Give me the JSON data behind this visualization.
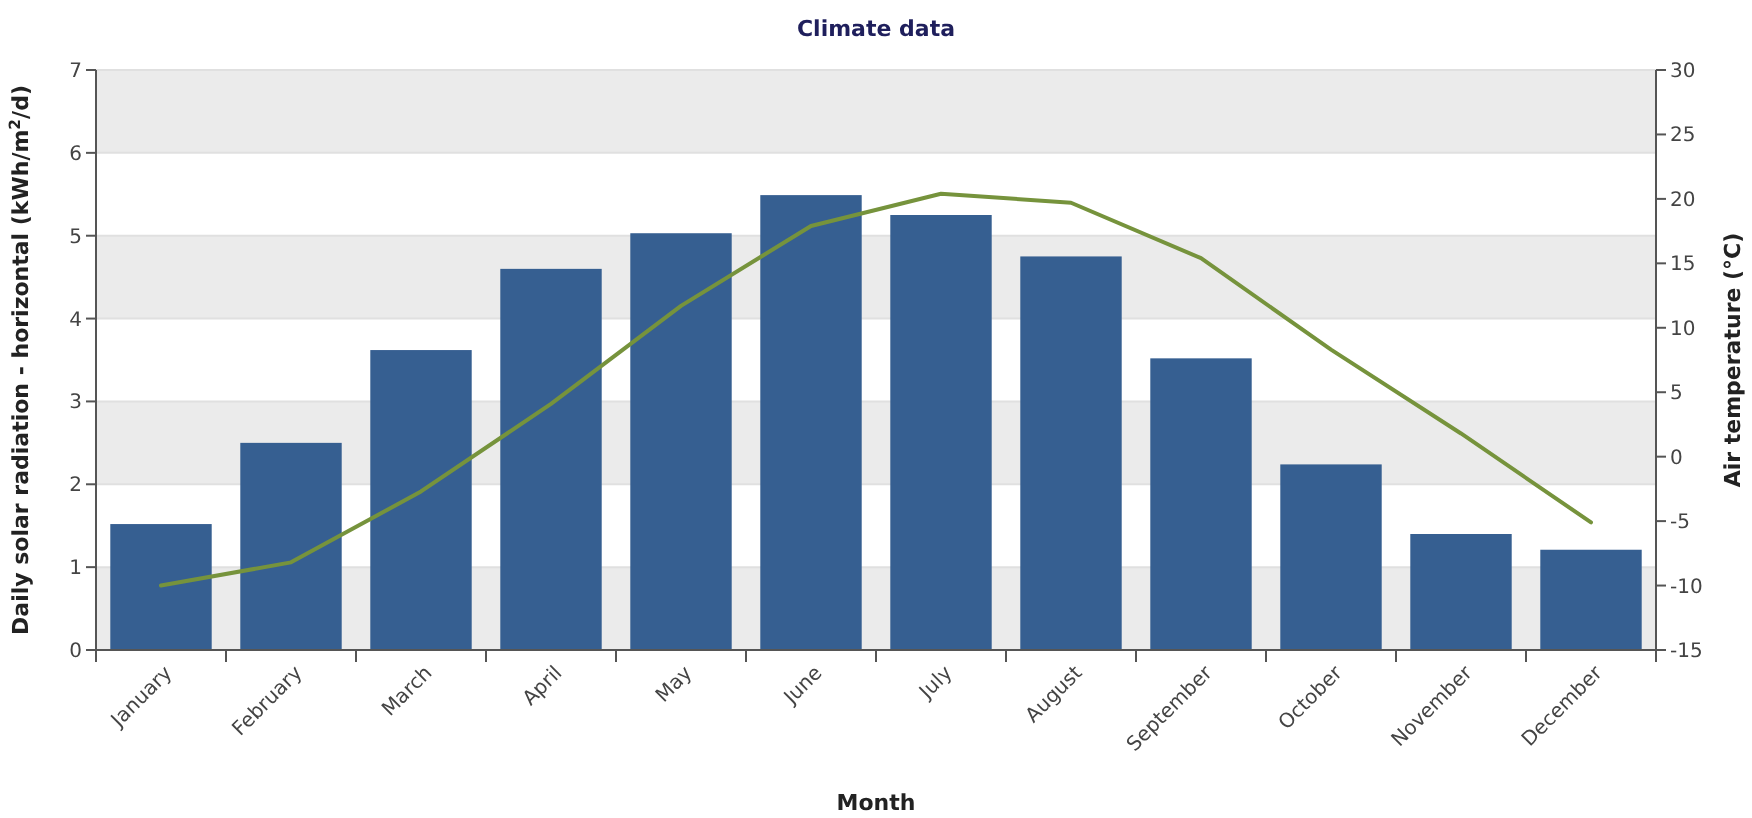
{
  "chart_data": {
    "type": "bar",
    "title": "Climate data",
    "xlabel": "Month",
    "ylabel": "Daily solar radiation - horizontal (kWh/m$^{2}$/d)",
    "y2label": "Air temperature (°C)",
    "categories": [
      "January",
      "February",
      "March",
      "April",
      "May",
      "June",
      "July",
      "August",
      "September",
      "October",
      "November",
      "December"
    ],
    "series": [
      {
        "color": "#365f91",
        "values": [
          1.52,
          2.5,
          3.62,
          4.6,
          5.03,
          5.49,
          5.25,
          4.75,
          3.52,
          2.24,
          1.4,
          1.21
        ]
      },
      {
        "type": "line",
        "axis": "y2",
        "color": "#76933c",
        "values": [
          -10.0,
          -8.2,
          -2.7,
          4.1,
          11.7,
          17.9,
          20.4,
          19.7,
          15.4,
          8.3,
          1.8,
          -5.1
        ]
      }
    ],
    "ylim": [
      0,
      7
    ],
    "yticks": [
      0,
      1,
      2,
      3,
      4,
      5,
      6,
      7
    ],
    "y2lim": [
      -15,
      30
    ],
    "y2ticks": [
      -15,
      -10,
      -5,
      0,
      5,
      10,
      15,
      20,
      25,
      30
    ],
    "grid": "y"
  }
}
